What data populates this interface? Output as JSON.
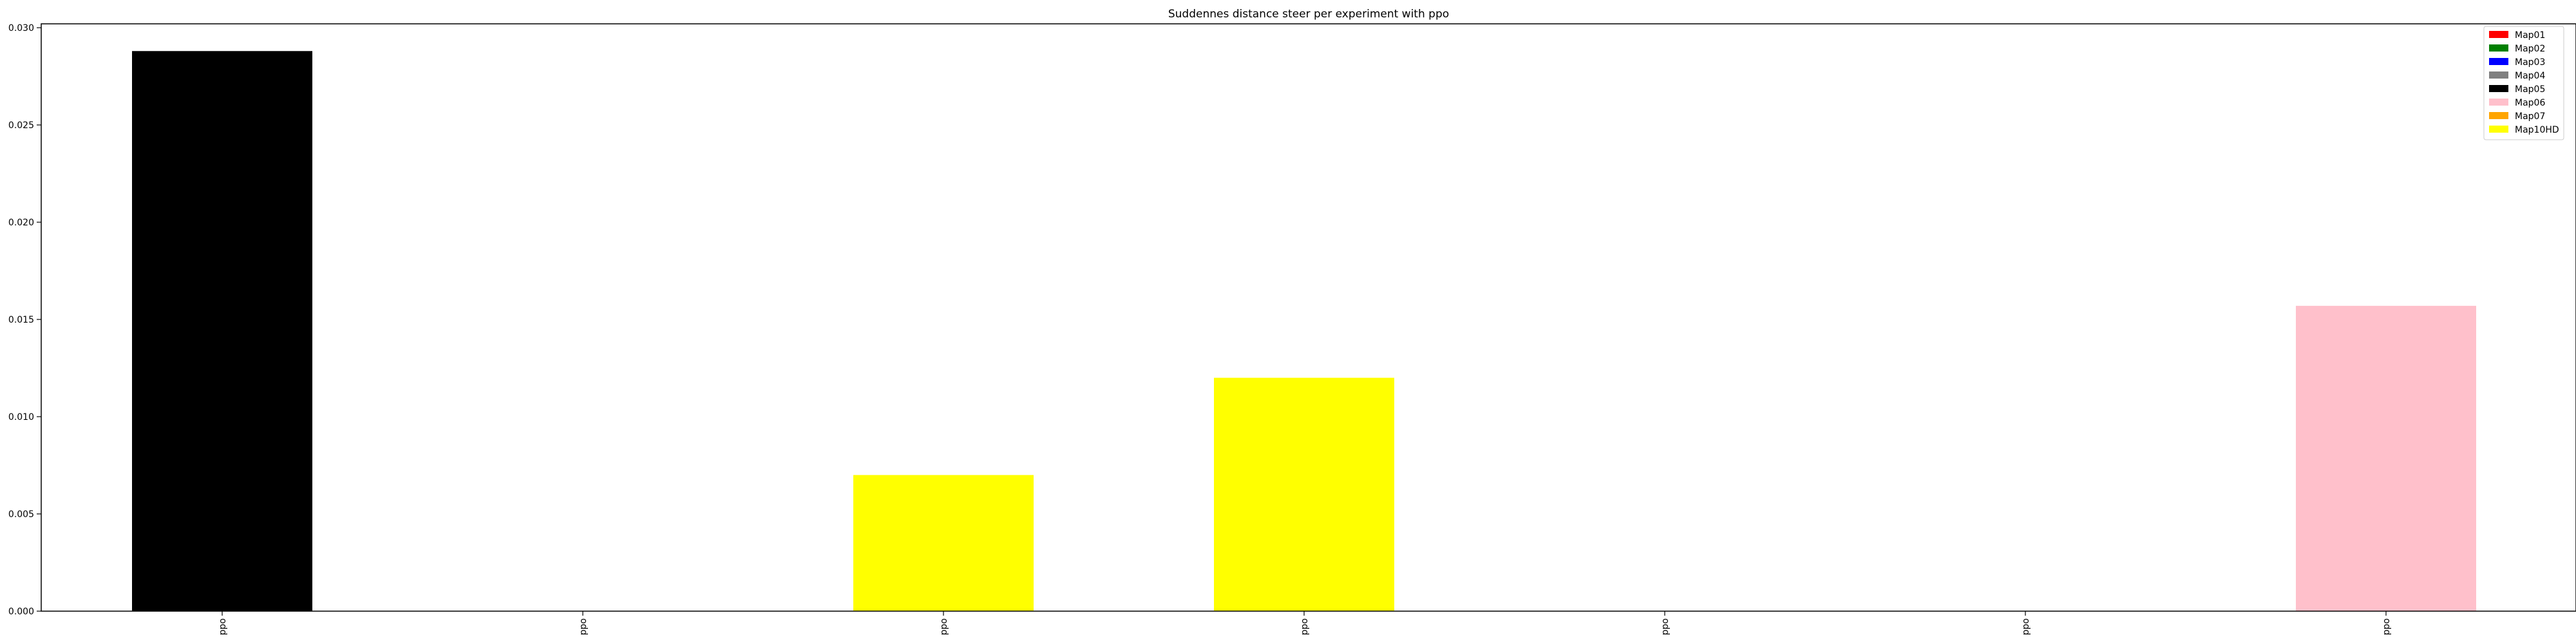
{
  "chart_data": {
    "type": "bar",
    "title": "Suddennes distance steer per experiment with ppo",
    "xlabel": "",
    "ylabel": "",
    "categories": [
      "ppo",
      "ppo",
      "ppo",
      "ppo",
      "ppo",
      "ppo",
      "ppo"
    ],
    "bars": [
      {
        "value": 0.0288,
        "color": "#000000"
      },
      {
        "value": 0,
        "color": "#000000"
      },
      {
        "value": 0.007,
        "color": "#ffff00"
      },
      {
        "value": 0.012,
        "color": "#ffff00"
      },
      {
        "value": 0,
        "color": "#000000"
      },
      {
        "value": 0,
        "color": "#000000"
      },
      {
        "value": 0.0157,
        "color": "#ffc0cb"
      }
    ],
    "ylim": [
      0,
      0.0302
    ],
    "yticks": [
      "0.000",
      "0.005",
      "0.010",
      "0.015",
      "0.020",
      "0.025",
      "0.030"
    ],
    "grid": false,
    "legend_position": "top-right",
    "legend": [
      {
        "label": "Map01",
        "color": "#ff0000"
      },
      {
        "label": "Map02",
        "color": "#008000"
      },
      {
        "label": "Map03",
        "color": "#0000ff"
      },
      {
        "label": "Map04",
        "color": "#808080"
      },
      {
        "label": "Map05",
        "color": "#000000"
      },
      {
        "label": "Map06",
        "color": "#ffc0cb"
      },
      {
        "label": "Map07",
        "color": "#ffa500"
      },
      {
        "label": "Map10HD",
        "color": "#ffff00"
      }
    ]
  }
}
